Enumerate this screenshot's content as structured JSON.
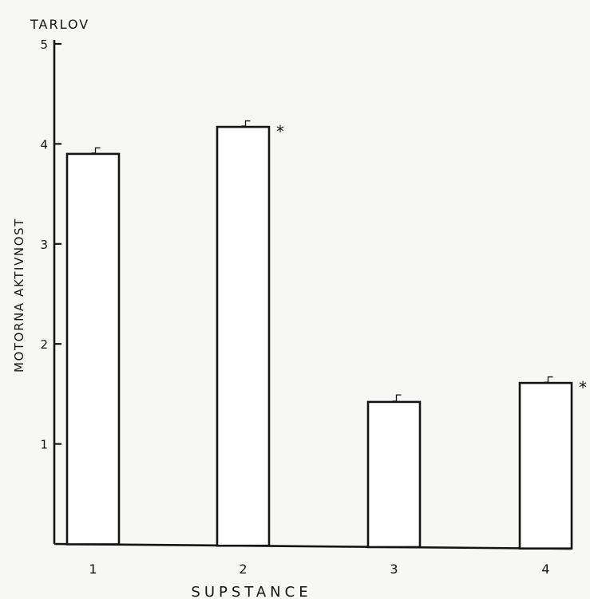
{
  "chart_data": {
    "type": "bar",
    "title": "TARLOV",
    "xlabel": "SUPSTANCE",
    "ylabel": "MOTORNA AKTIVNOST",
    "categories": [
      "1",
      "2",
      "3",
      "4"
    ],
    "values": [
      3.9,
      4.17,
      1.42,
      1.61
    ],
    "errors": [
      0.06,
      0.06,
      0.07,
      0.06
    ],
    "significance": [
      "",
      "*",
      "",
      "*"
    ],
    "ylim": [
      0,
      5
    ],
    "yticks": [
      1,
      2,
      3,
      4,
      5
    ],
    "grid": false,
    "legend": "none",
    "colors": {
      "bar_fill": "#ffffff",
      "ink": "#141414",
      "background": "#f7f7f5"
    }
  }
}
